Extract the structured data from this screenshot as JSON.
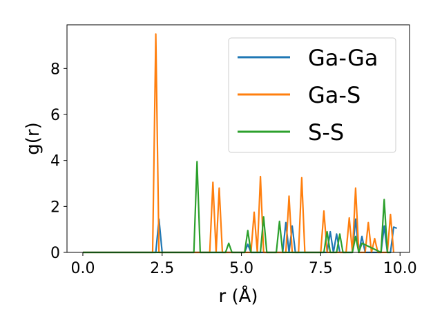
{
  "chart_data": {
    "type": "line",
    "xlabel": "r (Å)",
    "ylabel": "g(r)",
    "xlim": [
      -0.5,
      10.3
    ],
    "ylim": [
      0,
      9.9
    ],
    "xticks": [
      0.0,
      2.5,
      5.0,
      7.5,
      10.0
    ],
    "xtick_labels": [
      "0.0",
      "2.5",
      "5.0",
      "7.5",
      "10.0"
    ],
    "yticks": [
      0,
      2,
      4,
      6,
      8
    ],
    "ytick_labels": [
      "0",
      "2",
      "4",
      "6",
      "8"
    ],
    "legend_position": "top-right",
    "grid": false,
    "series": [
      {
        "name": "Ga-Ga",
        "color": "#1f77b4",
        "x": [
          0.0,
          2.2,
          2.3,
          2.4,
          2.5,
          2.6,
          5.1,
          5.2,
          5.3,
          6.3,
          6.4,
          6.5,
          6.6,
          6.7,
          6.8,
          7.7,
          7.8,
          7.9,
          8.0,
          8.1,
          8.5,
          8.6,
          8.7,
          8.8,
          8.9,
          9.0,
          9.4,
          9.5,
          9.6,
          9.7,
          9.8,
          9.9
        ],
        "y": [
          0,
          0,
          0,
          1.45,
          0,
          0,
          0,
          0.35,
          0,
          0,
          1.3,
          0,
          1.15,
          0,
          0,
          0,
          0.9,
          0,
          0.8,
          0,
          0,
          1.45,
          0,
          0.7,
          0,
          0,
          0,
          1.15,
          0,
          0,
          1.1,
          1.05
        ]
      },
      {
        "name": "Ga-S",
        "color": "#ff7f0e",
        "x": [
          0.0,
          2.2,
          2.3,
          2.4,
          2.5,
          2.6,
          4.0,
          4.1,
          4.2,
          4.3,
          4.4,
          5.3,
          5.4,
          5.5,
          5.6,
          5.7,
          5.8,
          6.4,
          6.5,
          6.6,
          6.8,
          6.9,
          7.0,
          7.5,
          7.6,
          7.7,
          8.3,
          8.4,
          8.5,
          8.6,
          8.7,
          8.9,
          9.0,
          9.1,
          9.2,
          9.3,
          9.6,
          9.7,
          9.8
        ],
        "y": [
          0,
          0,
          9.5,
          0,
          0,
          0,
          0,
          3.05,
          0,
          2.8,
          0,
          0,
          1.75,
          0,
          3.3,
          0,
          0,
          0,
          2.45,
          0,
          0,
          3.25,
          0,
          0,
          1.8,
          0,
          0,
          1.5,
          0,
          2.8,
          0,
          0,
          1.3,
          0,
          0.6,
          0,
          0,
          1.65,
          0
        ]
      },
      {
        "name": "S-S",
        "color": "#2ca02c",
        "x": [
          0.0,
          3.5,
          3.6,
          3.7,
          4.5,
          4.6,
          4.7,
          5.1,
          5.2,
          5.3,
          5.6,
          5.7,
          5.8,
          6.1,
          6.2,
          6.3,
          7.6,
          7.7,
          7.8,
          8.0,
          8.1,
          8.2,
          8.5,
          8.6,
          8.7,
          8.8,
          9.4,
          9.5,
          9.6,
          9.7
        ],
        "y": [
          0,
          0,
          3.95,
          0,
          0,
          0.4,
          0,
          0,
          0.95,
          0,
          0,
          1.55,
          0,
          0,
          1.35,
          0,
          0,
          0.9,
          0,
          0,
          0.8,
          0,
          0,
          0.7,
          0,
          0.4,
          0,
          2.3,
          0,
          0
        ]
      }
    ]
  }
}
